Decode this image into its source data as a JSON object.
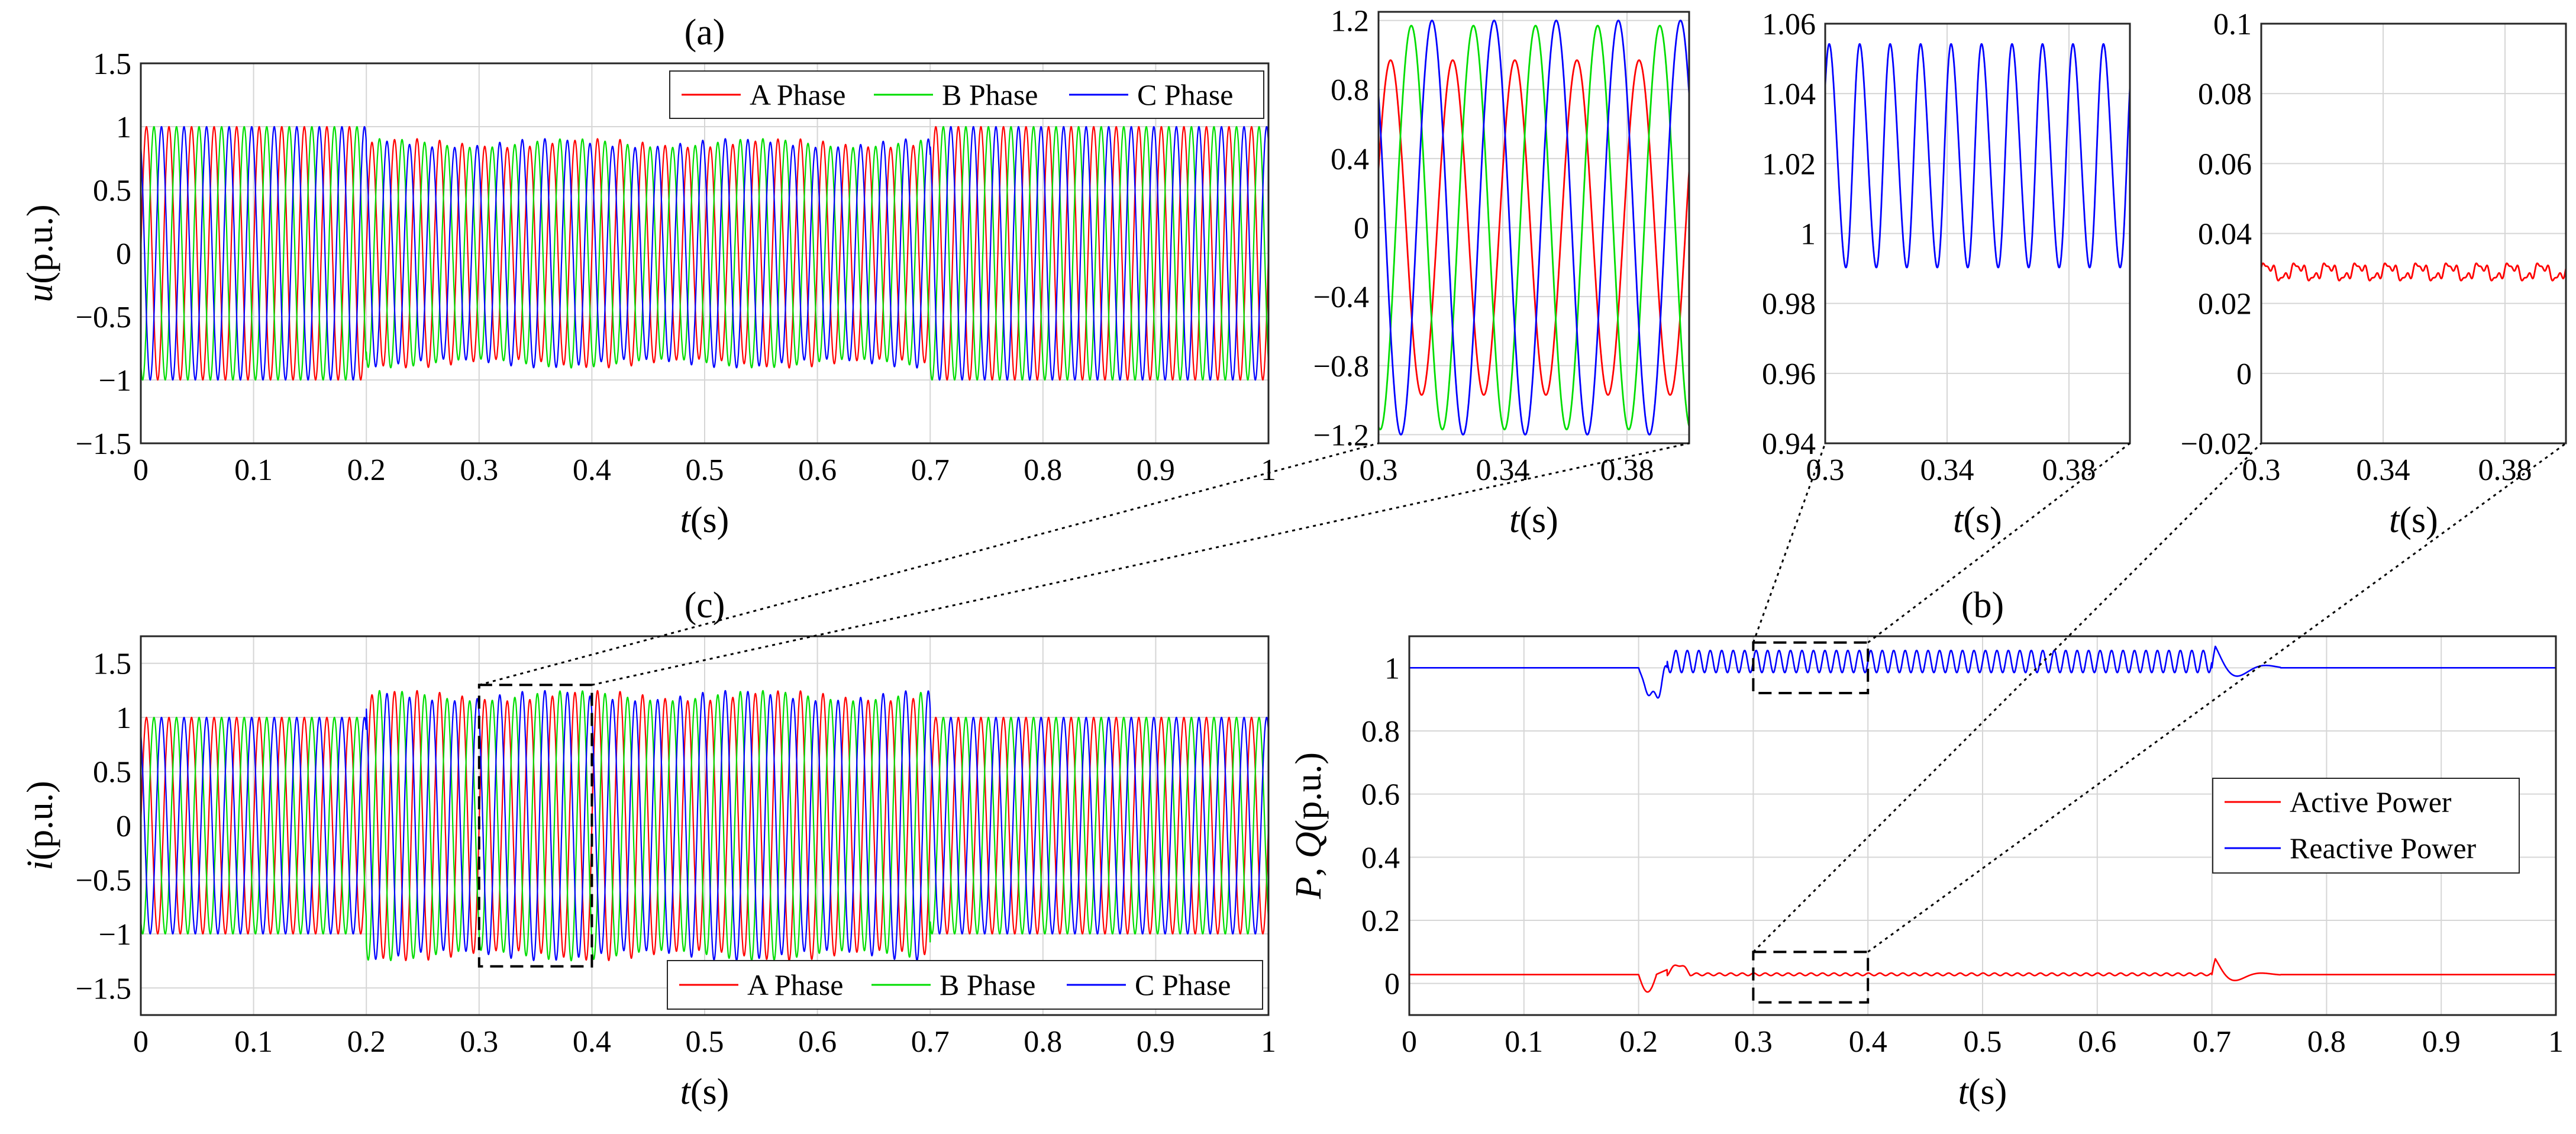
{
  "colors": {
    "phase_a": "#ff0000",
    "phase_b": "#00dd00",
    "phase_c": "#0000ff",
    "active": "#ff0000",
    "reactive": "#0000ff",
    "grid": "#d6d6d6",
    "axis": "#262626"
  },
  "chart_data": [
    {
      "id": "a",
      "type": "line",
      "title": "(a)",
      "xlabel": "t(s)",
      "ylabel": "u(p.u.)",
      "xlim": [
        0,
        1
      ],
      "ylim": [
        -1.5,
        1.5
      ],
      "xticks": [
        0,
        0.1,
        0.2,
        0.3,
        0.4,
        0.5,
        0.6,
        0.7,
        0.8,
        0.9,
        1
      ],
      "xtick_labels": [
        "0",
        "0.1",
        "0.2",
        "0.3",
        "0.4",
        "0.5",
        "0.6",
        "0.7",
        "0.8",
        "0.9",
        "1"
      ],
      "yticks": [
        -1.5,
        -1,
        -0.5,
        0,
        0.5,
        1,
        1.5
      ],
      "ytick_labels": [
        "−1.5",
        "−1",
        "−0.5",
        "0",
        "0.5",
        "1",
        "1.5"
      ],
      "grid": true,
      "legend": "top-right",
      "frequency_hz": 50,
      "series": [
        {
          "name": "A Phase",
          "amplitude": 1.0,
          "phase_deg": 0
        },
        {
          "name": "B Phase",
          "amplitude": 1.0,
          "phase_deg": -120
        },
        {
          "name": "C Phase",
          "amplitude": 1.0,
          "phase_deg": 120
        }
      ],
      "disturbance": {
        "t_start": 0.2,
        "t_end": 0.7,
        "amplitude": 0.87
      }
    },
    {
      "id": "c",
      "type": "line",
      "title": "(c)",
      "xlabel": "t(s)",
      "ylabel": "i(p.u.)",
      "xlim": [
        0,
        1
      ],
      "ylim": [
        -1.75,
        1.75
      ],
      "xticks": [
        0,
        0.1,
        0.2,
        0.3,
        0.4,
        0.5,
        0.6,
        0.7,
        0.8,
        0.9,
        1
      ],
      "xtick_labels": [
        "0",
        "0.1",
        "0.2",
        "0.3",
        "0.4",
        "0.5",
        "0.6",
        "0.7",
        "0.8",
        "0.9",
        "1"
      ],
      "yticks": [
        -1.5,
        -1,
        -0.5,
        0,
        0.5,
        1,
        1.5
      ],
      "ytick_labels": [
        "−1.5",
        "−1",
        "−0.5",
        "0",
        "0.5",
        "1",
        "1.5"
      ],
      "grid": true,
      "legend": "bottom-right",
      "frequency_hz": 50,
      "series": [
        {
          "name": "A Phase",
          "amplitude": 1.0,
          "phase_deg": 0
        },
        {
          "name": "B Phase",
          "amplitude": 1.0,
          "phase_deg": -120
        },
        {
          "name": "C Phase",
          "amplitude": 1.0,
          "phase_deg": 120
        }
      ],
      "disturbance": {
        "t_start": 0.2,
        "t_end": 0.7,
        "amplitude": 1.2
      },
      "zoom_box": {
        "x": [
          0.3,
          0.4
        ],
        "y": [
          -1.3,
          1.3
        ]
      }
    },
    {
      "id": "b",
      "type": "line",
      "title": "(b)",
      "xlabel": "t(s)",
      "ylabel": "P, Q(p.u.)",
      "xlim": [
        0,
        1
      ],
      "ylim": [
        -0.1,
        1.1
      ],
      "xticks": [
        0,
        0.1,
        0.2,
        0.3,
        0.4,
        0.5,
        0.6,
        0.7,
        0.8,
        0.9,
        1
      ],
      "xtick_labels": [
        "0",
        "0.1",
        "0.2",
        "0.3",
        "0.4",
        "0.5",
        "0.6",
        "0.7",
        "0.8",
        "0.9",
        "1"
      ],
      "yticks": [
        0,
        0.2,
        0.4,
        0.6,
        0.8,
        1
      ],
      "ytick_labels": [
        "0",
        "0.2",
        "0.4",
        "0.6",
        "0.8",
        "1"
      ],
      "grid": true,
      "legend": "right",
      "series": [
        {
          "name": "Active Power",
          "base": 0.03,
          "oscillation": 0.004
        },
        {
          "name": "Reactive Power",
          "base": 1.0,
          "oscillation_center": 1.02,
          "oscillation_amplitude": 0.035
        }
      ],
      "disturbance": {
        "t_start": 0.2,
        "t_end": 0.7
      },
      "zoom_boxes": [
        {
          "x": [
            0.3,
            0.4
          ],
          "y": [
            0.92,
            1.08
          ]
        },
        {
          "x": [
            0.3,
            0.4
          ],
          "y": [
            -0.06,
            0.1
          ]
        }
      ]
    },
    {
      "id": "zoom-current",
      "type": "line",
      "xlabel": "t(s)",
      "xlim": [
        0.3,
        0.4
      ],
      "ylim": [
        -1.25,
        1.25
      ],
      "xticks": [
        0.3,
        0.34,
        0.38
      ],
      "xtick_labels": [
        "0.3",
        "0.34",
        "0.38"
      ],
      "yticks": [
        -1.2,
        -0.8,
        -0.4,
        0,
        0.4,
        0.8,
        1.2
      ],
      "ytick_labels": [
        "−1.2",
        "−0.8",
        "−0.4",
        "0",
        "0.4",
        "0.8",
        "1.2"
      ],
      "grid": true,
      "series": [
        {
          "name": "A Phase",
          "amplitude": 0.97
        },
        {
          "name": "B Phase",
          "amplitude": 1.17
        },
        {
          "name": "C Phase",
          "amplitude": 1.2
        }
      ]
    },
    {
      "id": "zoom-reactive",
      "type": "line",
      "xlabel": "t(s)",
      "xlim": [
        0.3,
        0.4
      ],
      "ylim": [
        0.94,
        1.06
      ],
      "xticks": [
        0.3,
        0.34,
        0.38
      ],
      "xtick_labels": [
        "0.3",
        "0.34",
        "0.38"
      ],
      "yticks": [
        0.94,
        0.96,
        0.98,
        1,
        1.02,
        1.04,
        1.06
      ],
      "ytick_labels": [
        "0.94",
        "0.96",
        "0.98",
        "1",
        "1.02",
        "1.04",
        "1.06"
      ],
      "grid": true,
      "series": [
        {
          "name": "Reactive Power",
          "min": 0.988,
          "max": 1.056,
          "cycles": 10
        }
      ]
    },
    {
      "id": "zoom-active",
      "type": "line",
      "xlabel": "t(s)",
      "xlim": [
        0.3,
        0.4
      ],
      "ylim": [
        -0.02,
        0.1
      ],
      "xticks": [
        0.3,
        0.34,
        0.38
      ],
      "xtick_labels": [
        "0.3",
        "0.34",
        "0.38"
      ],
      "yticks": [
        -0.02,
        0,
        0.02,
        0.04,
        0.06,
        0.08,
        0.1
      ],
      "ytick_labels": [
        "−0.02",
        "0",
        "0.02",
        "0.04",
        "0.06",
        "0.08",
        "0.1"
      ],
      "grid": true,
      "series": [
        {
          "name": "Active Power",
          "mean": 0.029,
          "ripple": 0.003
        }
      ]
    }
  ]
}
